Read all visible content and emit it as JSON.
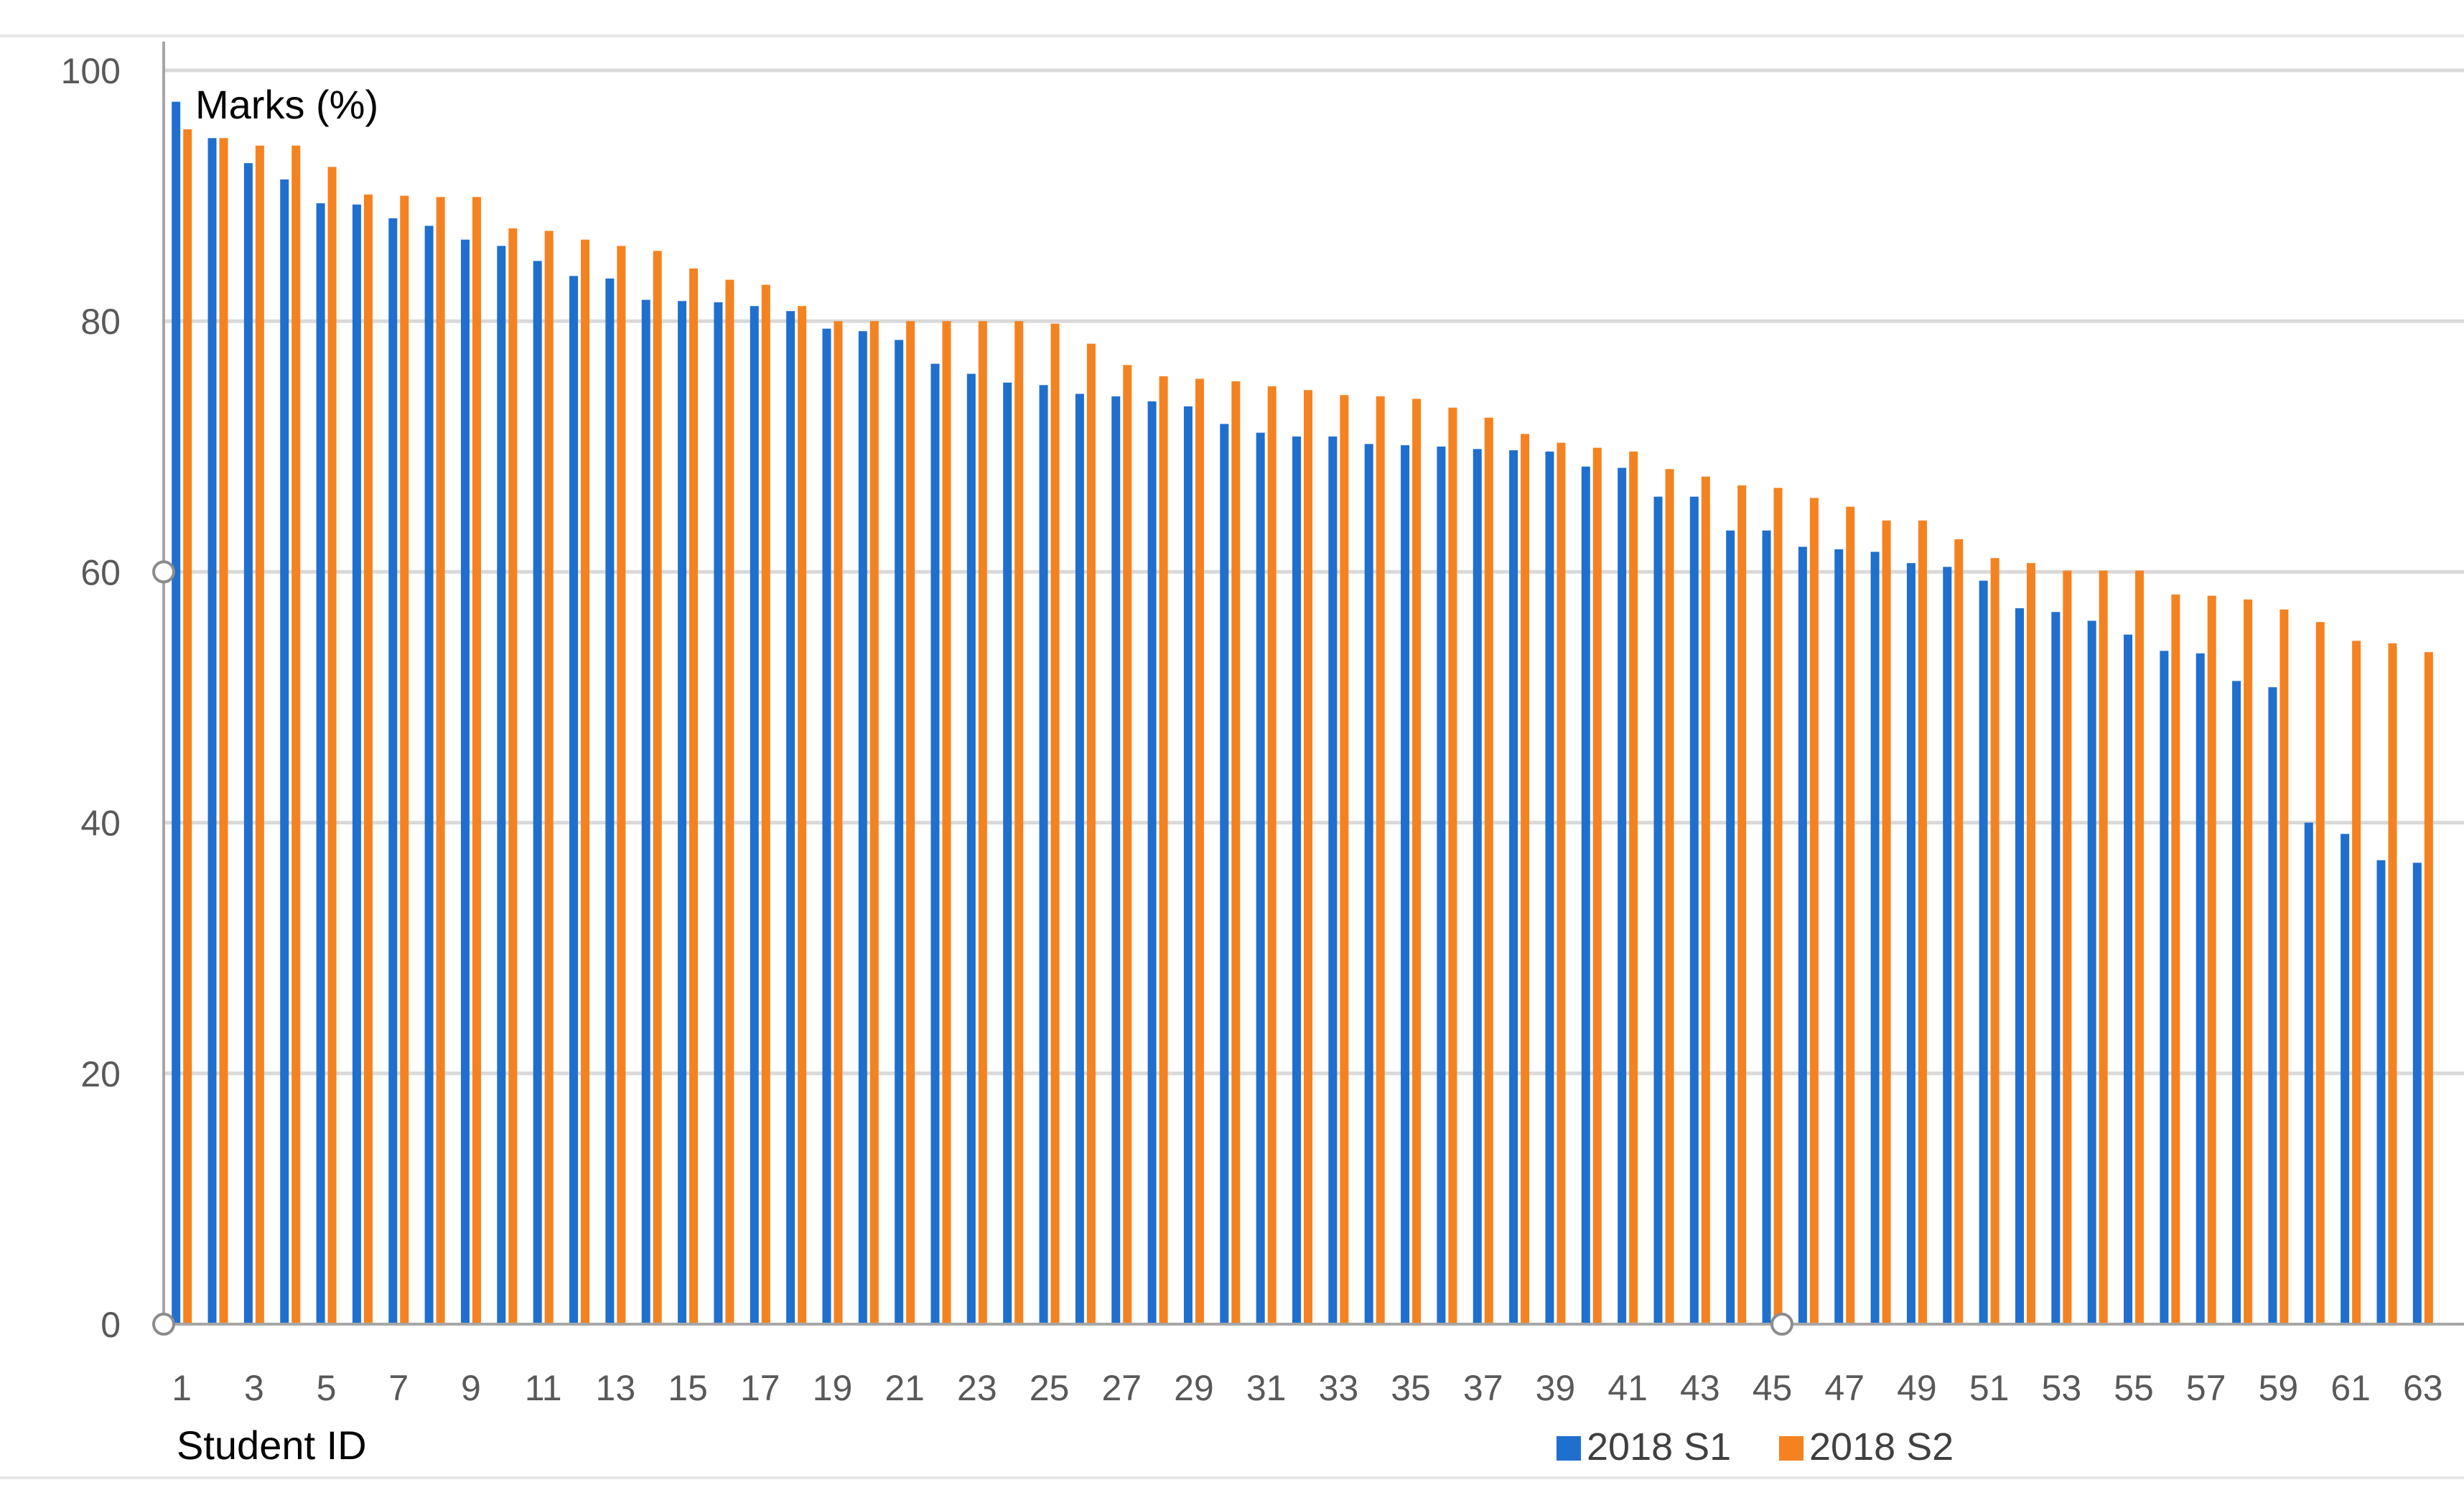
{
  "colors": {
    "s1": "#1f6fcf",
    "s2": "#f58220",
    "grid": "#d9d9d9",
    "axis": "#a6a6a6",
    "handle": "#8c8c8c"
  },
  "chart_data": {
    "type": "bar",
    "ylabel": "Marks (%)",
    "xlabel": "Student ID",
    "ylim": [
      0,
      100
    ],
    "yticks": [
      0,
      20,
      40,
      60,
      80,
      100
    ],
    "grid": true,
    "legend_position": "bottom-right",
    "x": [
      1,
      2,
      3,
      4,
      5,
      6,
      7,
      8,
      9,
      10,
      11,
      12,
      13,
      14,
      15,
      16,
      17,
      18,
      19,
      20,
      21,
      22,
      23,
      24,
      25,
      26,
      27,
      28,
      29,
      30,
      31,
      32,
      33,
      34,
      35,
      36,
      37,
      38,
      39,
      40,
      41,
      42,
      43,
      44,
      45,
      46,
      47,
      48,
      49,
      50,
      51,
      52,
      53,
      54,
      55,
      56,
      57,
      58,
      59,
      60,
      61,
      62,
      63
    ],
    "xtick_labels": [
      "1",
      "3",
      "5",
      "7",
      "9",
      "11",
      "13",
      "15",
      "17",
      "19",
      "21",
      "23",
      "25",
      "27",
      "29",
      "31",
      "33",
      "35",
      "37",
      "39",
      "41",
      "43",
      "45",
      "47",
      "49",
      "51",
      "53",
      "55",
      "57",
      "59",
      "61",
      "63"
    ],
    "series": [
      {
        "name": "2018 S1",
        "values": [
          97.5,
          94.6,
          92.6,
          91.3,
          89.4,
          89.3,
          88.2,
          87.6,
          86.5,
          86.0,
          84.8,
          83.6,
          83.4,
          81.7,
          81.6,
          81.5,
          81.2,
          80.8,
          79.4,
          79.2,
          78.5,
          76.6,
          75.8,
          75.1,
          74.9,
          74.2,
          74.0,
          73.6,
          73.2,
          71.8,
          71.1,
          70.8,
          70.8,
          70.2,
          70.1,
          70.0,
          69.8,
          69.7,
          69.6,
          68.4,
          68.3,
          66.0,
          66.0,
          63.3,
          63.3,
          62.0,
          61.8,
          61.6,
          60.7,
          60.4,
          59.3,
          57.1,
          56.8,
          56.1,
          55.0,
          53.7,
          53.5,
          51.3,
          50.8,
          40.0,
          39.1,
          37.0,
          36.8
        ]
      },
      {
        "name": "2018 S2",
        "values": [
          95.3,
          94.6,
          94.0,
          94.0,
          92.3,
          90.1,
          90.0,
          89.9,
          89.9,
          87.4,
          87.2,
          86.5,
          86.0,
          85.6,
          84.2,
          83.3,
          82.9,
          81.2,
          80.0,
          80.0,
          80.0,
          80.0,
          80.0,
          80.0,
          79.8,
          78.2,
          76.5,
          75.6,
          75.4,
          75.2,
          74.8,
          74.5,
          74.1,
          74.0,
          73.8,
          73.1,
          72.3,
          71.0,
          70.3,
          69.9,
          69.6,
          68.2,
          67.6,
          66.9,
          66.7,
          65.9,
          65.2,
          64.1,
          64.1,
          62.6,
          61.1,
          60.7,
          60.1,
          60.1,
          60.1,
          58.2,
          58.1,
          57.8,
          57.0,
          56.0,
          54.5,
          54.3,
          53.6
        ]
      }
    ]
  }
}
